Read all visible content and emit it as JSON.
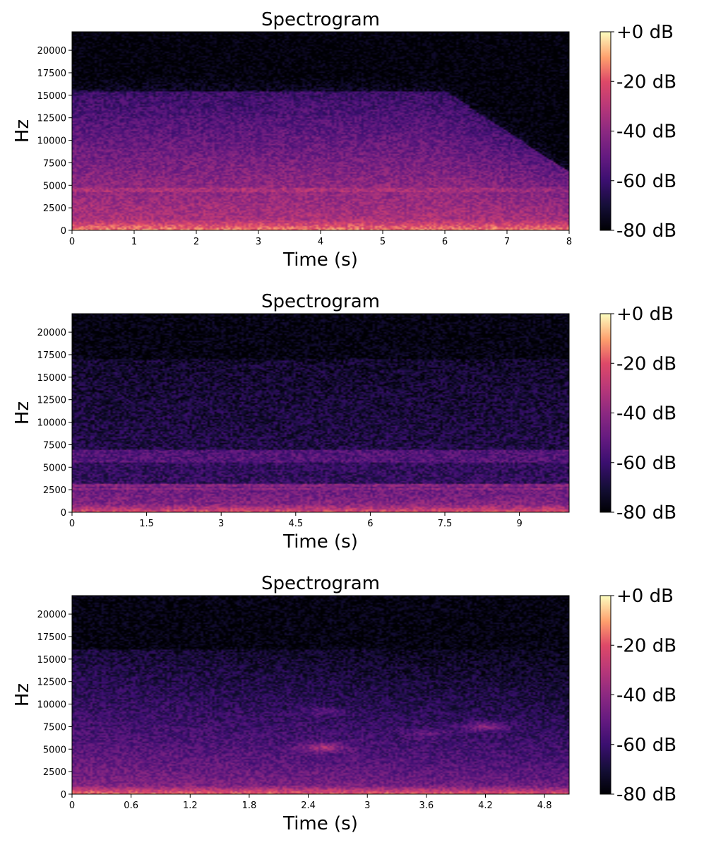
{
  "chart_data": [
    {
      "type": "heatmap",
      "title": "Spectrogram",
      "xlabel": "Time (s)",
      "ylabel": "Hz",
      "xlim": [
        0,
        8
      ],
      "ylim": [
        0,
        22050
      ],
      "x_ticks": [
        {
          "value": 0,
          "label": "0"
        },
        {
          "value": 1,
          "label": "1"
        },
        {
          "value": 2,
          "label": "2"
        },
        {
          "value": 3,
          "label": "3"
        },
        {
          "value": 4,
          "label": "4"
        },
        {
          "value": 5,
          "label": "5"
        },
        {
          "value": 6,
          "label": "6"
        },
        {
          "value": 7,
          "label": "7"
        },
        {
          "value": 8,
          "label": "8"
        }
      ],
      "y_ticks": [
        {
          "value": 0,
          "label": "0"
        },
        {
          "value": 2500,
          "label": "2500"
        },
        {
          "value": 5000,
          "label": "5000"
        },
        {
          "value": 7500,
          "label": "7500"
        },
        {
          "value": 10000,
          "label": "10000"
        },
        {
          "value": 12500,
          "label": "12500"
        },
        {
          "value": 15000,
          "label": "15000"
        },
        {
          "value": 17500,
          "label": "17500"
        },
        {
          "value": 20000,
          "label": "20000"
        }
      ],
      "colorbar": {
        "colormap": "magma",
        "range": [
          -80,
          0
        ],
        "ticks": [
          {
            "value": 0,
            "label": "+0 dB"
          },
          {
            "value": -20,
            "label": "-20 dB"
          },
          {
            "value": -40,
            "label": "-40 dB"
          },
          {
            "value": -60,
            "label": "-60 dB"
          },
          {
            "value": -80,
            "label": "-80 dB"
          }
        ]
      },
      "energy_profile": {
        "frequency_cutoff_hz": 15500,
        "highfreq_decay_after_s": 6,
        "tonal_lines_hz": [
          4500
        ]
      }
    },
    {
      "type": "heatmap",
      "title": "Spectrogram",
      "xlabel": "Time (s)",
      "ylabel": "Hz",
      "xlim": [
        0,
        10
      ],
      "ylim": [
        0,
        22050
      ],
      "x_ticks": [
        {
          "value": 0,
          "label": "0"
        },
        {
          "value": 1.5,
          "label": "1.5"
        },
        {
          "value": 3,
          "label": "3"
        },
        {
          "value": 4.5,
          "label": "4.5"
        },
        {
          "value": 6,
          "label": "6"
        },
        {
          "value": 7.5,
          "label": "7.5"
        },
        {
          "value": 9,
          "label": "9"
        }
      ],
      "y_ticks": [
        {
          "value": 0,
          "label": "0"
        },
        {
          "value": 2500,
          "label": "2500"
        },
        {
          "value": 5000,
          "label": "5000"
        },
        {
          "value": 7500,
          "label": "7500"
        },
        {
          "value": 10000,
          "label": "10000"
        },
        {
          "value": 12500,
          "label": "12500"
        },
        {
          "value": 15000,
          "label": "15000"
        },
        {
          "value": 17500,
          "label": "17500"
        },
        {
          "value": 20000,
          "label": "20000"
        }
      ],
      "colorbar": {
        "colormap": "magma",
        "range": [
          -80,
          0
        ],
        "ticks": [
          {
            "value": 0,
            "label": "+0 dB"
          },
          {
            "value": -20,
            "label": "-20 dB"
          },
          {
            "value": -40,
            "label": "-40 dB"
          },
          {
            "value": -60,
            "label": "-60 dB"
          },
          {
            "value": -80,
            "label": "-80 dB"
          }
        ]
      },
      "energy_profile": {
        "frequency_cutoff_hz": 17000,
        "bands_hz": [
          [
            0,
            3200
          ],
          [
            5500,
            7000
          ]
        ],
        "tonal_lines_hz": [
          3000,
          2600
        ]
      }
    },
    {
      "type": "heatmap",
      "title": "Spectrogram",
      "xlabel": "Time (s)",
      "ylabel": "Hz",
      "xlim": [
        0,
        5.05
      ],
      "ylim": [
        0,
        22050
      ],
      "x_ticks": [
        {
          "value": 0,
          "label": "0"
        },
        {
          "value": 0.6,
          "label": "0.6"
        },
        {
          "value": 1.2,
          "label": "1.2"
        },
        {
          "value": 1.8,
          "label": "1.8"
        },
        {
          "value": 2.4,
          "label": "2.4"
        },
        {
          "value": 3,
          "label": "3"
        },
        {
          "value": 3.6,
          "label": "3.6"
        },
        {
          "value": 4.2,
          "label": "4.2"
        },
        {
          "value": 4.8,
          "label": "4.8"
        }
      ],
      "y_ticks": [
        {
          "value": 0,
          "label": "0"
        },
        {
          "value": 2500,
          "label": "2500"
        },
        {
          "value": 5000,
          "label": "5000"
        },
        {
          "value": 7500,
          "label": "7500"
        },
        {
          "value": 10000,
          "label": "10000"
        },
        {
          "value": 12500,
          "label": "12500"
        },
        {
          "value": 15000,
          "label": "15000"
        },
        {
          "value": 17500,
          "label": "17500"
        },
        {
          "value": 20000,
          "label": "20000"
        }
      ],
      "colorbar": {
        "colormap": "magma",
        "range": [
          -80,
          0
        ],
        "ticks": [
          {
            "value": 0,
            "label": "+0 dB"
          },
          {
            "value": -20,
            "label": "-20 dB"
          },
          {
            "value": -40,
            "label": "-40 dB"
          },
          {
            "value": -60,
            "label": "-60 dB"
          },
          {
            "value": -80,
            "label": "-80 dB"
          }
        ]
      },
      "energy_profile": {
        "frequency_cutoff_hz": 16000,
        "low_band_hz": [
          0,
          1000
        ],
        "blobs": [
          {
            "t": 2.55,
            "f": 5200
          },
          {
            "t": 2.55,
            "f": 9200
          },
          {
            "t": 4.2,
            "f": 7500
          }
        ]
      }
    }
  ]
}
